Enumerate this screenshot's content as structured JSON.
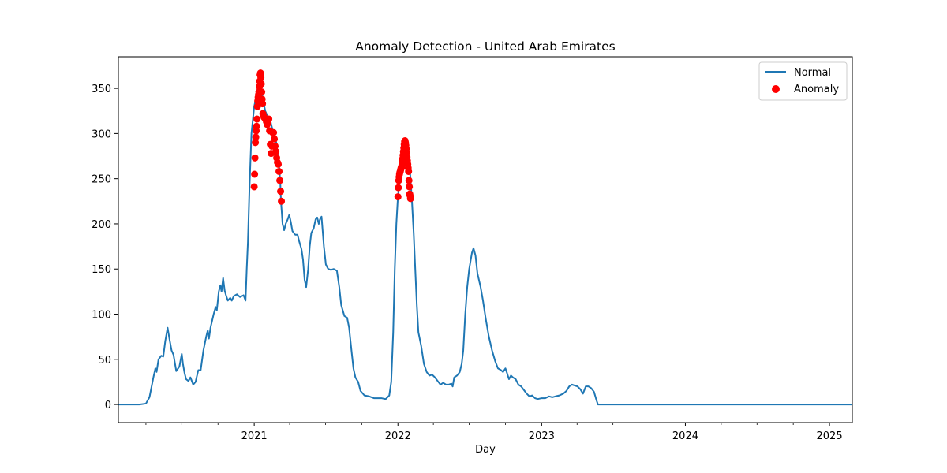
{
  "chart_data": {
    "type": "line",
    "title": "Anomaly Detection - United Arab Emirates",
    "xlabel": "Day",
    "ylabel": "",
    "x_type": "date",
    "xlim": [
      "2020-01-22",
      "2025-02-28"
    ],
    "ylim": [
      -20,
      385
    ],
    "x_ticks": [
      {
        "date": "2021-01-01",
        "label": "2021"
      },
      {
        "date": "2022-01-01",
        "label": "2022"
      },
      {
        "date": "2023-01-01",
        "label": "2023"
      },
      {
        "date": "2024-01-01",
        "label": "2024"
      },
      {
        "date": "2025-01-01",
        "label": "2025"
      }
    ],
    "x_minor_ticks": [
      "2020-04-01",
      "2020-07-01",
      "2020-10-01",
      "2021-04-01",
      "2021-07-01",
      "2021-10-01",
      "2022-04-01",
      "2022-07-01",
      "2022-10-01",
      "2023-04-01",
      "2023-07-01",
      "2023-10-01",
      "2024-04-01",
      "2024-07-01",
      "2024-10-01"
    ],
    "y_ticks": [
      0,
      50,
      100,
      150,
      200,
      250,
      300,
      350
    ],
    "legend": {
      "position": "top-right",
      "entries": [
        "Normal",
        "Anomaly"
      ]
    },
    "grid": false,
    "colors": {
      "normal": "#1f77b4",
      "anomaly": "#ff0000"
    },
    "series": [
      {
        "name": "Normal",
        "kind": "line",
        "points": [
          [
            "2020-01-22",
            0
          ],
          [
            "2020-03-15",
            0
          ],
          [
            "2020-04-01",
            1
          ],
          [
            "2020-04-10",
            8
          ],
          [
            "2020-04-20",
            30
          ],
          [
            "2020-04-25",
            40
          ],
          [
            "2020-04-28",
            36
          ],
          [
            "2020-05-03",
            50
          ],
          [
            "2020-05-10",
            54
          ],
          [
            "2020-05-15",
            53
          ],
          [
            "2020-05-20",
            70
          ],
          [
            "2020-05-26",
            85
          ],
          [
            "2020-05-31",
            72
          ],
          [
            "2020-06-05",
            60
          ],
          [
            "2020-06-10",
            55
          ],
          [
            "2020-06-17",
            37
          ],
          [
            "2020-06-25",
            42
          ],
          [
            "2020-07-01",
            56
          ],
          [
            "2020-07-04",
            45
          ],
          [
            "2020-07-08",
            35
          ],
          [
            "2020-07-12",
            28
          ],
          [
            "2020-07-18",
            26
          ],
          [
            "2020-07-23",
            30
          ],
          [
            "2020-07-30",
            22
          ],
          [
            "2020-08-05",
            25
          ],
          [
            "2020-08-12",
            38
          ],
          [
            "2020-08-18",
            38
          ],
          [
            "2020-08-25",
            60
          ],
          [
            "2020-09-01",
            75
          ],
          [
            "2020-09-05",
            82
          ],
          [
            "2020-09-08",
            73
          ],
          [
            "2020-09-12",
            85
          ],
          [
            "2020-09-20",
            100
          ],
          [
            "2020-09-25",
            108
          ],
          [
            "2020-09-28",
            104
          ],
          [
            "2020-10-03",
            125
          ],
          [
            "2020-10-07",
            132
          ],
          [
            "2020-10-10",
            125
          ],
          [
            "2020-10-14",
            140
          ],
          [
            "2020-10-18",
            126
          ],
          [
            "2020-10-22",
            120
          ],
          [
            "2020-10-26",
            115
          ],
          [
            "2020-11-01",
            118
          ],
          [
            "2020-11-05",
            115
          ],
          [
            "2020-11-10",
            120
          ],
          [
            "2020-11-18",
            122
          ],
          [
            "2020-11-26",
            119
          ],
          [
            "2020-12-05",
            121
          ],
          [
            "2020-12-10",
            115
          ],
          [
            "2020-12-13",
            150
          ],
          [
            "2020-12-16",
            180
          ],
          [
            "2020-12-20",
            240
          ],
          [
            "2020-12-25",
            300
          ],
          [
            "2021-01-01",
            330
          ],
          [
            "2021-01-08",
            345
          ],
          [
            "2021-01-15",
            365
          ],
          [
            "2021-01-22",
            340
          ],
          [
            "2021-01-29",
            325
          ],
          [
            "2021-02-05",
            318
          ],
          [
            "2021-02-12",
            312
          ],
          [
            "2021-02-19",
            300
          ],
          [
            "2021-02-26",
            290
          ],
          [
            "2021-03-01",
            280
          ],
          [
            "2021-03-05",
            265
          ],
          [
            "2021-03-08",
            248
          ],
          [
            "2021-03-10",
            225
          ],
          [
            "2021-03-14",
            200
          ],
          [
            "2021-03-18",
            193
          ],
          [
            "2021-03-22",
            200
          ],
          [
            "2021-03-27",
            205
          ],
          [
            "2021-03-31",
            210
          ],
          [
            "2021-04-04",
            202
          ],
          [
            "2021-04-08",
            192
          ],
          [
            "2021-04-15",
            188
          ],
          [
            "2021-04-21",
            188
          ],
          [
            "2021-04-25",
            181
          ],
          [
            "2021-05-01",
            172
          ],
          [
            "2021-05-05",
            160
          ],
          [
            "2021-05-09",
            138
          ],
          [
            "2021-05-13",
            130
          ],
          [
            "2021-05-18",
            150
          ],
          [
            "2021-05-22",
            175
          ],
          [
            "2021-05-26",
            190
          ],
          [
            "2021-06-01",
            195
          ],
          [
            "2021-06-06",
            205
          ],
          [
            "2021-06-10",
            207
          ],
          [
            "2021-06-14",
            200
          ],
          [
            "2021-06-17",
            205
          ],
          [
            "2021-06-21",
            208
          ],
          [
            "2021-06-27",
            175
          ],
          [
            "2021-07-02",
            155
          ],
          [
            "2021-07-08",
            150
          ],
          [
            "2021-07-15",
            149
          ],
          [
            "2021-07-22",
            150
          ],
          [
            "2021-07-30",
            148
          ],
          [
            "2021-08-05",
            130
          ],
          [
            "2021-08-10",
            110
          ],
          [
            "2021-08-18",
            98
          ],
          [
            "2021-08-25",
            96
          ],
          [
            "2021-08-30",
            85
          ],
          [
            "2021-09-05",
            60
          ],
          [
            "2021-09-10",
            40
          ],
          [
            "2021-09-15",
            30
          ],
          [
            "2021-09-22",
            25
          ],
          [
            "2021-09-28",
            15
          ],
          [
            "2021-10-08",
            10
          ],
          [
            "2021-10-20",
            9
          ],
          [
            "2021-11-01",
            7
          ],
          [
            "2021-11-20",
            7
          ],
          [
            "2021-12-01",
            6
          ],
          [
            "2021-12-10",
            10
          ],
          [
            "2021-12-15",
            25
          ],
          [
            "2021-12-20",
            80
          ],
          [
            "2021-12-24",
            150
          ],
          [
            "2021-12-28",
            200
          ],
          [
            "2022-01-01",
            230
          ],
          [
            "2022-01-06",
            252
          ],
          [
            "2022-01-12",
            262
          ],
          [
            "2022-01-18",
            275
          ],
          [
            "2022-01-22",
            292
          ],
          [
            "2022-01-26",
            280
          ],
          [
            "2022-01-31",
            262
          ],
          [
            "2022-02-05",
            230
          ],
          [
            "2022-02-10",
            190
          ],
          [
            "2022-02-14",
            150
          ],
          [
            "2022-02-18",
            110
          ],
          [
            "2022-02-22",
            80
          ],
          [
            "2022-03-01",
            65
          ],
          [
            "2022-03-08",
            45
          ],
          [
            "2022-03-15",
            36
          ],
          [
            "2022-03-22",
            32
          ],
          [
            "2022-03-29",
            33
          ],
          [
            "2022-04-05",
            30
          ],
          [
            "2022-04-12",
            26
          ],
          [
            "2022-04-19",
            22
          ],
          [
            "2022-04-26",
            24
          ],
          [
            "2022-05-03",
            22
          ],
          [
            "2022-05-10",
            22
          ],
          [
            "2022-05-17",
            23
          ],
          [
            "2022-05-20",
            20
          ],
          [
            "2022-05-24",
            30
          ],
          [
            "2022-05-31",
            32
          ],
          [
            "2022-06-07",
            36
          ],
          [
            "2022-06-12",
            45
          ],
          [
            "2022-06-16",
            60
          ],
          [
            "2022-06-21",
            100
          ],
          [
            "2022-06-26",
            130
          ],
          [
            "2022-07-01",
            150
          ],
          [
            "2022-07-08",
            168
          ],
          [
            "2022-07-12",
            173
          ],
          [
            "2022-07-17",
            165
          ],
          [
            "2022-07-22",
            145
          ],
          [
            "2022-07-30",
            130
          ],
          [
            "2022-08-05",
            115
          ],
          [
            "2022-08-12",
            95
          ],
          [
            "2022-08-20",
            75
          ],
          [
            "2022-08-28",
            60
          ],
          [
            "2022-09-05",
            48
          ],
          [
            "2022-09-12",
            40
          ],
          [
            "2022-09-20",
            38
          ],
          [
            "2022-09-25",
            36
          ],
          [
            "2022-10-01",
            40
          ],
          [
            "2022-10-05",
            35
          ],
          [
            "2022-10-10",
            28
          ],
          [
            "2022-10-15",
            32
          ],
          [
            "2022-10-20",
            30
          ],
          [
            "2022-10-27",
            28
          ],
          [
            "2022-11-03",
            22
          ],
          [
            "2022-11-10",
            20
          ],
          [
            "2022-11-17",
            16
          ],
          [
            "2022-11-24",
            12
          ],
          [
            "2022-12-01",
            9
          ],
          [
            "2022-12-08",
            10
          ],
          [
            "2022-12-15",
            7
          ],
          [
            "2022-12-22",
            6
          ],
          [
            "2023-01-01",
            7
          ],
          [
            "2023-01-10",
            7
          ],
          [
            "2023-01-20",
            9
          ],
          [
            "2023-01-28",
            8
          ],
          [
            "2023-02-05",
            9
          ],
          [
            "2023-02-15",
            10
          ],
          [
            "2023-02-25",
            12
          ],
          [
            "2023-03-05",
            15
          ],
          [
            "2023-03-12",
            20
          ],
          [
            "2023-03-19",
            22
          ],
          [
            "2023-03-26",
            21
          ],
          [
            "2023-04-02",
            20
          ],
          [
            "2023-04-09",
            17
          ],
          [
            "2023-04-16",
            12
          ],
          [
            "2023-04-23",
            20
          ],
          [
            "2023-04-30",
            20
          ],
          [
            "2023-05-07",
            18
          ],
          [
            "2023-05-14",
            14
          ],
          [
            "2023-05-20",
            5
          ],
          [
            "2023-05-24",
            0
          ],
          [
            "2025-02-28",
            0
          ]
        ]
      },
      {
        "name": "Anomaly",
        "kind": "scatter",
        "points": [
          [
            "2021-01-01",
            241
          ],
          [
            "2021-01-02",
            255
          ],
          [
            "2021-01-03",
            273
          ],
          [
            "2021-01-04",
            290
          ],
          [
            "2021-01-05",
            296
          ],
          [
            "2021-01-06",
            303
          ],
          [
            "2021-01-07",
            308
          ],
          [
            "2021-01-08",
            316
          ],
          [
            "2021-01-09",
            330
          ],
          [
            "2021-01-10",
            336
          ],
          [
            "2021-01-11",
            340
          ],
          [
            "2021-01-12",
            343
          ],
          [
            "2021-01-13",
            346
          ],
          [
            "2021-01-14",
            352
          ],
          [
            "2021-01-15",
            358
          ],
          [
            "2021-01-16",
            365
          ],
          [
            "2021-01-17",
            367
          ],
          [
            "2021-01-18",
            362
          ],
          [
            "2021-01-19",
            355
          ],
          [
            "2021-01-20",
            346
          ],
          [
            "2021-01-21",
            338
          ],
          [
            "2021-01-22",
            333
          ],
          [
            "2021-01-23",
            322
          ],
          [
            "2021-01-24",
            320
          ],
          [
            "2021-01-26",
            318
          ],
          [
            "2021-01-28",
            317
          ],
          [
            "2021-01-30",
            316
          ],
          [
            "2021-02-01",
            313
          ],
          [
            "2021-02-03",
            310
          ],
          [
            "2021-02-05",
            312
          ],
          [
            "2021-02-07",
            316
          ],
          [
            "2021-02-09",
            303
          ],
          [
            "2021-02-11",
            288
          ],
          [
            "2021-02-13",
            278
          ],
          [
            "2021-02-15",
            286
          ],
          [
            "2021-02-17",
            301
          ],
          [
            "2021-02-19",
            301
          ],
          [
            "2021-02-21",
            294
          ],
          [
            "2021-02-23",
            286
          ],
          [
            "2021-02-25",
            280
          ],
          [
            "2021-02-27",
            273
          ],
          [
            "2021-03-01",
            268
          ],
          [
            "2021-03-03",
            266
          ],
          [
            "2021-03-05",
            258
          ],
          [
            "2021-03-07",
            248
          ],
          [
            "2021-03-09",
            236
          ],
          [
            "2021-03-11",
            225
          ],
          [
            "2022-01-01",
            230
          ],
          [
            "2022-01-02",
            240
          ],
          [
            "2022-01-03",
            248
          ],
          [
            "2022-01-04",
            252
          ],
          [
            "2022-01-05",
            255
          ],
          [
            "2022-01-06",
            257
          ],
          [
            "2022-01-07",
            258
          ],
          [
            "2022-01-08",
            260
          ],
          [
            "2022-01-09",
            262
          ],
          [
            "2022-01-10",
            262
          ],
          [
            "2022-01-11",
            265
          ],
          [
            "2022-01-12",
            270
          ],
          [
            "2022-01-13",
            272
          ],
          [
            "2022-01-14",
            276
          ],
          [
            "2022-01-15",
            280
          ],
          [
            "2022-01-16",
            284
          ],
          [
            "2022-01-17",
            288
          ],
          [
            "2022-01-18",
            291
          ],
          [
            "2022-01-19",
            292
          ],
          [
            "2022-01-20",
            290
          ],
          [
            "2022-01-21",
            287
          ],
          [
            "2022-01-22",
            283
          ],
          [
            "2022-01-23",
            279
          ],
          [
            "2022-01-24",
            274
          ],
          [
            "2022-01-25",
            270
          ],
          [
            "2022-01-26",
            266
          ],
          [
            "2022-01-27",
            262
          ],
          [
            "2022-01-28",
            258
          ],
          [
            "2022-01-29",
            248
          ],
          [
            "2022-01-30",
            241
          ],
          [
            "2022-01-31",
            233
          ],
          [
            "2022-02-01",
            231
          ],
          [
            "2022-02-02",
            228
          ]
        ]
      }
    ]
  }
}
